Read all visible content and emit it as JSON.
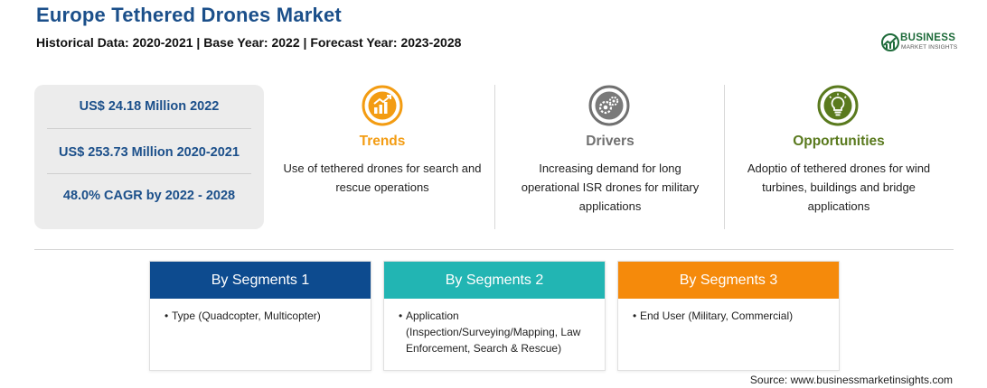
{
  "header": {
    "title": "Europe Tethered Drones Market",
    "subtitle": "Historical Data: 2020-2021 | Base Year: 2022 | Forecast Year: 2023-2028"
  },
  "logo": {
    "line1": "BUSINESS",
    "line2": "MARKET INSIGHTS"
  },
  "stats": [
    {
      "text": "US$ 24.18 Million 2022"
    },
    {
      "text": "US$ 253.73 Million 2020-2021"
    },
    {
      "text": "48.0% CAGR by 2022 - 2028"
    }
  ],
  "columns": [
    {
      "icon": "trend-chart-icon",
      "heading": "Trends",
      "color": "#f39c12",
      "text": "Use of tethered drones for search and rescue operations"
    },
    {
      "icon": "gears-icon",
      "heading": "Drivers",
      "color": "#707070",
      "text": "Increasing demand for long operational ISR drones for military applications"
    },
    {
      "icon": "lightbulb-icon",
      "heading": "Opportunities",
      "color": "#5a7a1e",
      "text": "Adoptio of tethered drones for wind turbines, buildings and bridge applications"
    }
  ],
  "segments": [
    {
      "title": "By Segments 1",
      "color": "#0d4b8f",
      "items": [
        "Type (Quadcopter, Multicopter)"
      ]
    },
    {
      "title": "By Segments 2",
      "color": "#22b5b3",
      "items": [
        "Application (Inspection/Surveying/Mapping, Law Enforcement, Search & Rescue)"
      ]
    },
    {
      "title": "By Segments 3",
      "color": "#f58a0b",
      "items": [
        "End User (Military, Commercial)"
      ]
    }
  ],
  "source": "Source: www.businessmarketinsights.com"
}
